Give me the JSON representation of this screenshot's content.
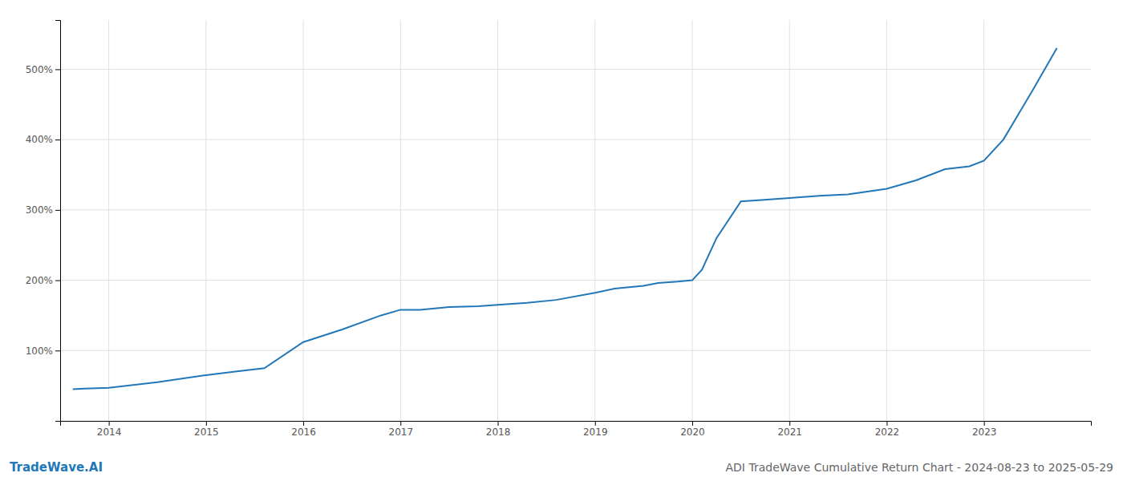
{
  "chart_data": {
    "type": "line",
    "title": "ADI TradeWave Cumulative Return Chart - 2024-08-23 to 2025-05-29",
    "annotations": [
      "TradeWave.AI"
    ],
    "x": [
      2013.63,
      2013.75,
      2014.0,
      2014.5,
      2015.0,
      2015.3,
      2015.6,
      2016.0,
      2016.4,
      2016.8,
      2017.0,
      2017.2,
      2017.5,
      2017.8,
      2018.0,
      2018.3,
      2018.6,
      2019.0,
      2019.2,
      2019.5,
      2019.65,
      2019.85,
      2020.0,
      2020.1,
      2020.25,
      2020.5,
      2020.8,
      2021.0,
      2021.3,
      2021.6,
      2022.0,
      2022.3,
      2022.6,
      2022.85,
      2023.0,
      2023.2,
      2023.5,
      2023.75
    ],
    "values": [
      45,
      46,
      47,
      55,
      65,
      70,
      75,
      112,
      130,
      150,
      158,
      158,
      162,
      163,
      165,
      168,
      172,
      182,
      188,
      192,
      196,
      198,
      200,
      215,
      260,
      312,
      315,
      317,
      320,
      322,
      330,
      342,
      358,
      362,
      370,
      400,
      470,
      530
    ],
    "color": "#2277b8",
    "xlim": [
      2013.5,
      2024.1
    ],
    "ylim": [
      0,
      570
    ],
    "xticks": [
      2014,
      2015,
      2016,
      2017,
      2018,
      2019,
      2020,
      2021,
      2022,
      2023
    ],
    "yticks": [
      {
        "value": 100,
        "label": "100%"
      },
      {
        "value": 200,
        "label": "200%"
      },
      {
        "value": 300,
        "label": "300%"
      },
      {
        "value": 400,
        "label": "400%"
      },
      {
        "value": 500,
        "label": "500%"
      }
    ],
    "grid": true
  }
}
